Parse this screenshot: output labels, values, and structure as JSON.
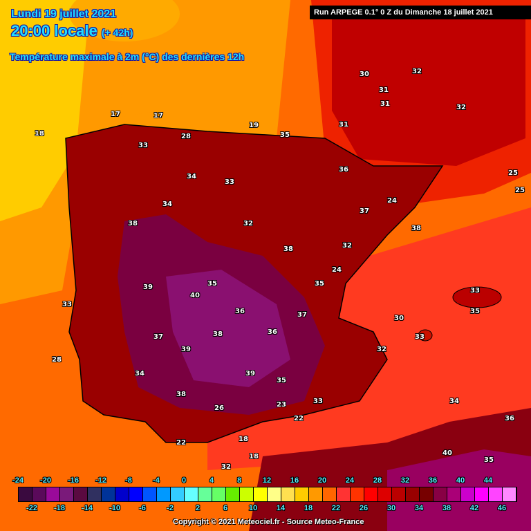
{
  "header": {
    "date": "Lundi 19 juillet 2021",
    "time": "20:00 locale",
    "lead": "(+ 42h)",
    "parameter": "Température maximale à 2m (°C) des dernières 12h",
    "run": "Run ARPEGE 0.1° 0 Z du Dimanche 18 juillet 2021"
  },
  "legend": {
    "unit": "°C",
    "top_labels": [
      "-24",
      "-20",
      "-16",
      "-12",
      "-8",
      "-4",
      "0",
      "4",
      "8",
      "12",
      "16",
      "20",
      "24",
      "28",
      "32",
      "36",
      "40",
      "44"
    ],
    "bottom_labels": [
      "-22",
      "-18",
      "-14",
      "-10",
      "-6",
      "-2",
      "2",
      "6",
      "10",
      "14",
      "18",
      "22",
      "26",
      "30",
      "34",
      "38",
      "42",
      "46"
    ],
    "colors": [
      "#3a0a3f",
      "#5a0a5a",
      "#9a0a9a",
      "#7a1a7a",
      "#5a0a40",
      "#303060",
      "#003399",
      "#0000cc",
      "#0000ff",
      "#0055ff",
      "#0099ff",
      "#33ccff",
      "#66ffff",
      "#66ff99",
      "#66ff66",
      "#66ee00",
      "#ccff00",
      "#ffff00",
      "#ffff88",
      "#ffe050",
      "#ffcc00",
      "#ff9900",
      "#ff6600",
      "#ff3333",
      "#ff3300",
      "#ff0000",
      "#dd0000",
      "#bb0000",
      "#990000",
      "#770000",
      "#880044",
      "#aa0077",
      "#cc00cc",
      "#ff00ff",
      "#ff44ff",
      "#ff88ff"
    ]
  },
  "map_labels": [
    "17",
    "18",
    "17",
    "19",
    "28",
    "33",
    "34",
    "34",
    "33",
    "32",
    "35",
    "31",
    "30",
    "31",
    "32",
    "31",
    "38",
    "39",
    "40",
    "36",
    "37",
    "39",
    "38",
    "36",
    "37",
    "39",
    "38",
    "35",
    "34",
    "33",
    "36",
    "37",
    "38",
    "35",
    "32",
    "30",
    "32",
    "34",
    "35",
    "33",
    "25",
    "25",
    "33",
    "32",
    "24",
    "23",
    "26",
    "33",
    "28",
    "18",
    "18",
    "22",
    "22",
    "32",
    "35",
    "38",
    "24",
    "36",
    "40",
    "35"
  ],
  "copyright": "Copyright © 2021 Meteociel.fr - Source Meteo-France"
}
